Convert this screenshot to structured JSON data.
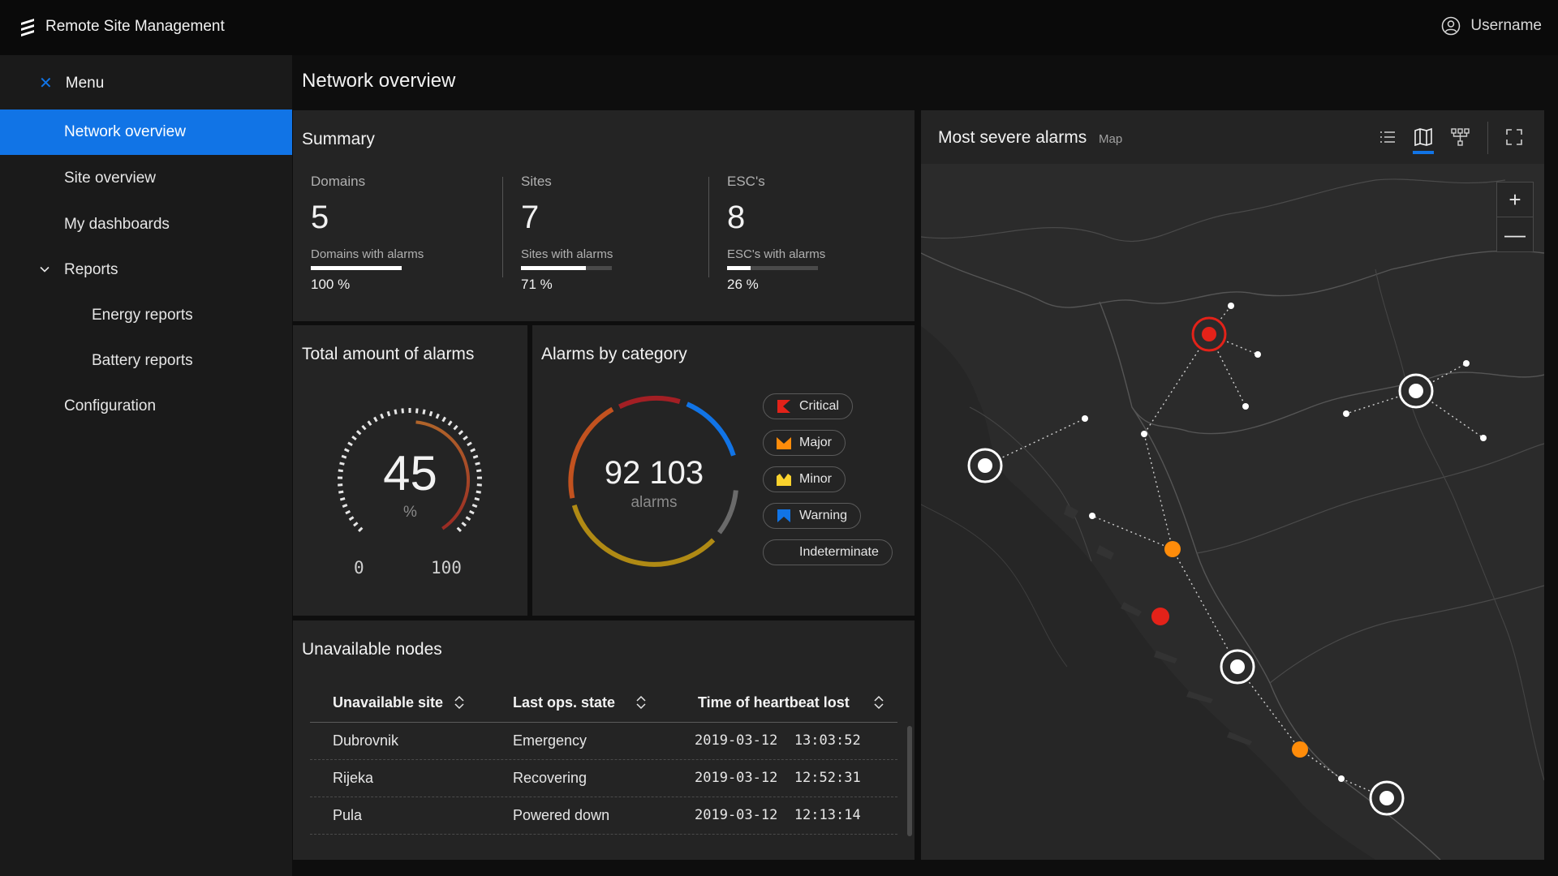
{
  "app": {
    "title": "Remote Site Management",
    "username": "Username"
  },
  "sidebar": {
    "menu_label": "Menu",
    "items": [
      {
        "label": "Network overview"
      },
      {
        "label": "Site overview"
      },
      {
        "label": "My dashboards"
      },
      {
        "label": "Reports"
      },
      {
        "label": "Energy reports"
      },
      {
        "label": "Battery reports"
      },
      {
        "label": "Configuration"
      }
    ]
  },
  "page": {
    "title": "Network overview"
  },
  "summary": {
    "title": "Summary",
    "cols": [
      {
        "label": "Domains",
        "value": "5",
        "sub": "Domains with alarms",
        "pct": "100 %",
        "fraction": 1.0
      },
      {
        "label": "Sites",
        "value": "7",
        "sub": "Sites with alarms",
        "pct": "71 %",
        "fraction": 0.71
      },
      {
        "label": "ESC's",
        "value": "8",
        "sub": "ESC's with alarms",
        "pct": "26 %",
        "fraction": 0.26
      }
    ]
  },
  "total_alarms": {
    "title": "Total amount of alarms",
    "value": "45",
    "unit": "%",
    "min": "0",
    "max": "100",
    "fraction": 0.45
  },
  "alarms_by_category": {
    "title": "Alarms by category",
    "total": "92 103",
    "unit": "alarms",
    "legend": [
      {
        "label": "Critical",
        "color": "#e32219",
        "icon": "critical-icon"
      },
      {
        "label": "Major",
        "color": "#ff8c0a",
        "icon": "major-icon"
      },
      {
        "label": "Minor",
        "color": "#fad22d",
        "icon": "minor-icon"
      },
      {
        "label": "Warning",
        "color": "#1174e6",
        "icon": "warning-icon"
      },
      {
        "label": "Indeterminate",
        "color": "#242424",
        "icon": "indeterminate-icon"
      }
    ]
  },
  "unavailable_nodes": {
    "title": "Unavailable nodes",
    "columns": [
      "Unavailable site",
      "Last ops. state",
      "Time of heartbeat lost"
    ],
    "rows": [
      [
        "Dubrovnik",
        "Emergency",
        "2019-03-12  13:03:52"
      ],
      [
        "Rijeka",
        "Recovering",
        "2019-03-12  12:52:31"
      ],
      [
        "Pula",
        "Powered down",
        "2019-03-12  12:13:14"
      ]
    ]
  },
  "map": {
    "title": "Most severe alarms",
    "subtitle": "Map",
    "zoom_in": "+",
    "zoom_out": "—"
  },
  "colors": {
    "accent": "#1174e6",
    "critical": "#e32219",
    "major": "#ff8c0a",
    "minor": "#fad22d"
  }
}
